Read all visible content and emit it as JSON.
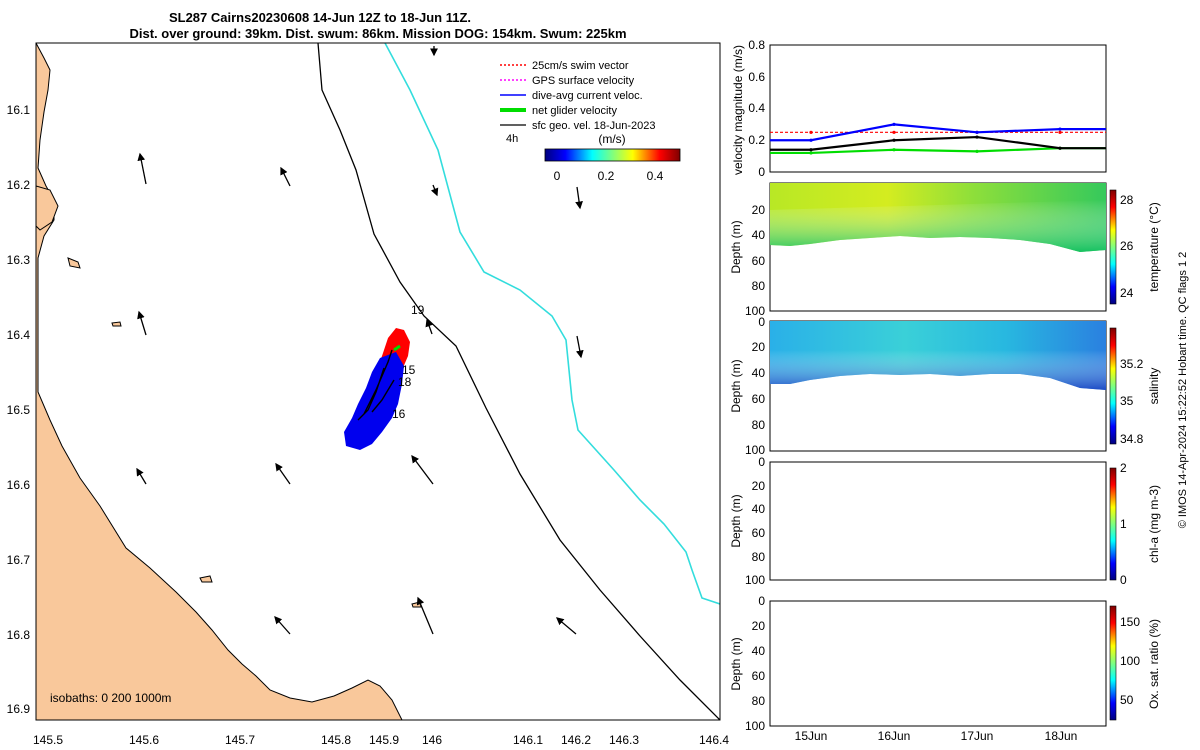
{
  "title": {
    "line1": "SL287 Cairns20230608 14-Jun 12Z to 18-Jun 11Z.",
    "line2": "Dist. over ground: 39km. Dist. swum: 86km. Mission DOG: 154km. Swum: 225km"
  },
  "map": {
    "lon_ticks": [
      "145.5",
      "145.6",
      "145.7",
      "145.8",
      "145.9",
      "146",
      "146.1",
      "146.2",
      "146.3",
      "146.4"
    ],
    "lat_ticks": [
      "16.1",
      "16.2",
      "16.3",
      "16.4",
      "16.5",
      "16.6",
      "16.7",
      "16.8",
      "16.9"
    ],
    "legend": [
      {
        "label": "25cm/s swim vector",
        "color": "#ff0000",
        "style": "dotted"
      },
      {
        "label": "GPS surface velocity",
        "color": "#ff00ff",
        "style": "dotted"
      },
      {
        "label": "dive-avg current veloc.",
        "color": "#0000ff",
        "style": "solid"
      },
      {
        "label": "net glider velocity",
        "color": "#00dd00",
        "style": "thick"
      },
      {
        "label": "sfc geo. vel. 18-Jun-2023",
        "color": "#000000",
        "style": "solid"
      }
    ],
    "time_label": "4h",
    "colorbar": {
      "unit": "(m/s)",
      "ticks": [
        "0",
        "0.2",
        "0.4"
      ]
    },
    "day_labels": [
      "19",
      "15",
      "18",
      "16"
    ],
    "isobaths": "isobaths: 0   200  1000m",
    "colors": {
      "land": "#f9c89b",
      "isobath_200": "#000000",
      "isobath_1000": "#33dddd"
    }
  },
  "panels": {
    "x_ticks": [
      "15Jun",
      "16Jun",
      "17Jun",
      "18Jun"
    ],
    "velocity": {
      "ylabel": "velocity magnitude (m/s)",
      "yticks": [
        "0",
        "0.2",
        "0.4",
        "0.6",
        "0.8"
      ],
      "ylim": [
        0,
        0.8
      ]
    },
    "temperature": {
      "ylabel": "Depth (m)",
      "depth_ticks": [
        "20",
        "40",
        "60",
        "80",
        "100"
      ],
      "cbar_label": "temperature (°C)",
      "cbar_ticks": [
        "28",
        "26",
        "24"
      ]
    },
    "salinity": {
      "ylabel": "Depth (m)",
      "depth_ticks": [
        "0",
        "20",
        "40",
        "60",
        "80",
        "100"
      ],
      "cbar_label": "salinity",
      "cbar_ticks": [
        "35.2",
        "35",
        "34.8"
      ]
    },
    "chla": {
      "ylabel": "Depth (m)",
      "depth_ticks": [
        "0",
        "20",
        "40",
        "60",
        "80",
        "100"
      ],
      "cbar_label": "chl-a (mg m-3)",
      "cbar_ticks": [
        "2",
        "1",
        "0"
      ]
    },
    "oxygen": {
      "ylabel": "Depth (m)",
      "depth_ticks": [
        "0",
        "20",
        "40",
        "60",
        "80",
        "100"
      ],
      "cbar_label": "Ox. sat. ratio (%)",
      "cbar_ticks": [
        "150",
        "100",
        "50"
      ]
    }
  },
  "footer": "© IMOS 14-Apr-2024 15:22:52 Hobart time. QC flags 1  2",
  "chart_data": {
    "type": "line",
    "title": "velocity magnitude (m/s)",
    "x": [
      "15Jun",
      "16Jun",
      "17Jun",
      "18Jun"
    ],
    "ylim": [
      0,
      0.8
    ],
    "series": [
      {
        "name": "swim speed 25cm/s",
        "color": "#ff0000",
        "values": [
          0.25,
          0.25,
          0.25,
          0.25
        ]
      },
      {
        "name": "dive-avg current",
        "color": "#0000ff",
        "values": [
          0.2,
          0.3,
          0.25,
          0.27
        ]
      },
      {
        "name": "net glider",
        "color": "#00dd00",
        "values": [
          0.12,
          0.14,
          0.13,
          0.15
        ]
      },
      {
        "name": "sfc geo vel",
        "color": "#000000",
        "values": [
          0.14,
          0.2,
          0.22,
          0.15
        ]
      }
    ]
  }
}
